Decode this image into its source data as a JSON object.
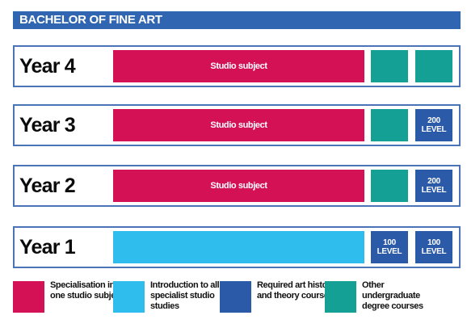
{
  "title": "BACHELOR OF FINE ART",
  "rows": [
    {
      "label": "Year 4",
      "main": "Studio subject",
      "box1": "",
      "box2": ""
    },
    {
      "label": "Year 3",
      "main": "Studio subject",
      "box1": "",
      "box2": "200 LEVEL"
    },
    {
      "label": "Year 2",
      "main": "Studio subject",
      "box1": "",
      "box2": "200 LEVEL"
    },
    {
      "label": "Year 1",
      "main": "",
      "box1": "100 LEVEL",
      "box2": "100 LEVEL"
    }
  ],
  "legend": [
    {
      "text": "Specialisation in one studio subject",
      "color": "#d41155"
    },
    {
      "text": "Introduction to all specialist studio studies",
      "color": "#2ebdec"
    },
    {
      "text": "Required art history and theory courses",
      "color": "#2a5aa8"
    },
    {
      "text": "Other undergraduate degree courses",
      "color": "#14a094"
    }
  ],
  "colors": {
    "title_bar": "#2f65b1",
    "studio": "#d41155",
    "intro": "#2ebdec",
    "required": "#2a5aa8",
    "other": "#14a094"
  }
}
